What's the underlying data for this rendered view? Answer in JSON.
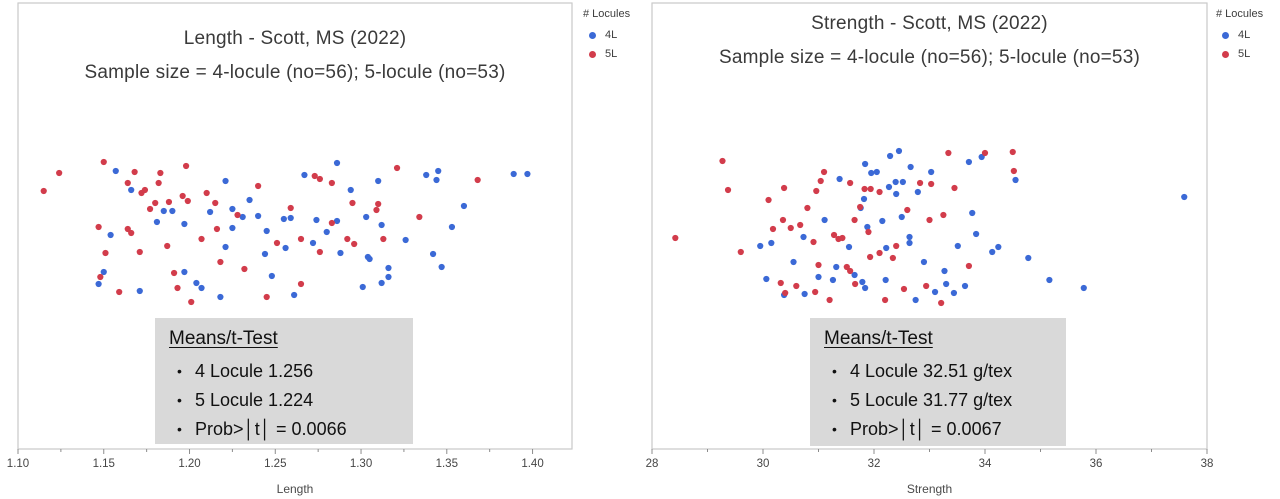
{
  "panels": [
    {
      "title": "Length - Scott, MS (2022)",
      "subtitle": "Sample size = 4-locule (no=56); 5-locule (no=53)",
      "xlabel": "Length",
      "legend": {
        "title": "# Locules",
        "items": [
          {
            "label": "4L",
            "color": "#3b69d6"
          },
          {
            "label": "5L",
            "color": "#d23c4b"
          }
        ]
      },
      "means_box": {
        "heading": "Means/t-Test",
        "bullet": "•",
        "lines": [
          "4 Locule 1.256",
          "5 Locule 1.224",
          "Prob>│t│ = 0.0066"
        ]
      }
    },
    {
      "title": "Strength - Scott, MS (2022)",
      "subtitle": "Sample size = 4-locule (no=56); 5-locule (no=53)",
      "xlabel": "Strength",
      "legend": {
        "title": "# Locules",
        "items": [
          {
            "label": "4L",
            "color": "#3b69d6"
          },
          {
            "label": "5L",
            "color": "#d23c4b"
          }
        ]
      },
      "means_box": {
        "heading": "Means/t-Test",
        "bullet": "•",
        "lines": [
          "4 Locule 32.51 g/tex",
          "5 Locule 31.77 g/tex",
          "Prob>│t│ = 0.0067"
        ]
      }
    }
  ],
  "chart_data": [
    {
      "type": "scatter",
      "title": "Length - Scott, MS (2022)",
      "subtitle": "Sample size = 4-locule (no=56); 5-locule (no=53)",
      "xlabel": "Length",
      "xlim": [
        1.1,
        1.423
      ],
      "grid": false,
      "legend_position": "top-right-outside",
      "xticks": [
        {
          "v": 1.1,
          "label": "1.10"
        },
        {
          "v": 1.15,
          "label": "1.15"
        },
        {
          "v": 1.2,
          "label": "1.20"
        },
        {
          "v": 1.25,
          "label": "1.25"
        },
        {
          "v": 1.3,
          "label": "1.30"
        },
        {
          "v": 1.35,
          "label": "1.35"
        },
        {
          "v": 1.4,
          "label": "1.40"
        }
      ],
      "xminor": [
        1.125,
        1.175,
        1.225,
        1.275,
        1.325,
        1.375
      ],
      "stats": {
        "mean_4L": 1.256,
        "mean_5L": 1.224,
        "prob_t": 0.0066,
        "n_4L": 56,
        "n_5L": 53
      },
      "series": [
        {
          "name": "4L",
          "color": "#3b69d6",
          "points": [
            [
              1.157,
              168
            ],
            [
              1.166,
              187
            ],
            [
              1.185,
              208
            ],
            [
              1.19,
              208
            ],
            [
              1.181,
              219
            ],
            [
              1.197,
              221
            ],
            [
              1.221,
              178
            ],
            [
              1.212,
              209
            ],
            [
              1.225,
              206
            ],
            [
              1.231,
              214
            ],
            [
              1.24,
              213
            ],
            [
              1.225,
              225
            ],
            [
              1.245,
              228
            ],
            [
              1.221,
              244
            ],
            [
              1.244,
              251
            ],
            [
              1.256,
              245
            ],
            [
              1.255,
              216
            ],
            [
              1.154,
              232
            ],
            [
              1.15,
              269
            ],
            [
              1.147,
              281
            ],
            [
              1.171,
              288
            ],
            [
              1.197,
              269
            ],
            [
              1.204,
              280
            ],
            [
              1.207,
              285
            ],
            [
              1.218,
              294
            ],
            [
              1.259,
              215
            ],
            [
              1.261,
              292
            ],
            [
              1.286,
              160
            ],
            [
              1.267,
              172
            ],
            [
              1.31,
              178
            ],
            [
              1.294,
              187
            ],
            [
              1.338,
              172
            ],
            [
              1.345,
              168
            ],
            [
              1.344,
              177
            ],
            [
              1.389,
              171
            ],
            [
              1.397,
              171
            ],
            [
              1.274,
              217
            ],
            [
              1.286,
              218
            ],
            [
              1.28,
              229
            ],
            [
              1.303,
              214
            ],
            [
              1.312,
              222
            ],
            [
              1.353,
              224
            ],
            [
              1.288,
              250
            ],
            [
              1.304,
              254
            ],
            [
              1.305,
              256
            ],
            [
              1.342,
              251
            ],
            [
              1.347,
              264
            ],
            [
              1.316,
              265
            ],
            [
              1.316,
              274
            ],
            [
              1.312,
              280
            ],
            [
              1.301,
              284
            ],
            [
              1.235,
              197
            ],
            [
              1.272,
              240
            ],
            [
              1.248,
              273
            ],
            [
              1.326,
              237
            ],
            [
              1.36,
              203
            ]
          ]
        },
        {
          "name": "5L",
          "color": "#d23c4b",
          "points": [
            [
              1.15,
              159
            ],
            [
              1.124,
              170
            ],
            [
              1.168,
              169
            ],
            [
              1.115,
              188
            ],
            [
              1.164,
              180
            ],
            [
              1.172,
              190
            ],
            [
              1.174,
              187
            ],
            [
              1.183,
              170
            ],
            [
              1.198,
              163
            ],
            [
              1.182,
              180
            ],
            [
              1.177,
              206
            ],
            [
              1.18,
              200
            ],
            [
              1.188,
              199
            ],
            [
              1.196,
              193
            ],
            [
              1.199,
              198
            ],
            [
              1.21,
              190
            ],
            [
              1.215,
              200
            ],
            [
              1.216,
              226
            ],
            [
              1.207,
              236
            ],
            [
              1.147,
              224
            ],
            [
              1.164,
              226
            ],
            [
              1.166,
              230
            ],
            [
              1.151,
              250
            ],
            [
              1.171,
              249
            ],
            [
              1.148,
              274
            ],
            [
              1.159,
              289
            ],
            [
              1.191,
              270
            ],
            [
              1.193,
              285
            ],
            [
              1.201,
              299
            ],
            [
              1.245,
              294
            ],
            [
              1.251,
              240
            ],
            [
              1.259,
              205
            ],
            [
              1.321,
              165
            ],
            [
              1.273,
              173
            ],
            [
              1.276,
              176
            ],
            [
              1.283,
              180
            ],
            [
              1.368,
              177
            ],
            [
              1.295,
              200
            ],
            [
              1.31,
              201
            ],
            [
              1.309,
              207
            ],
            [
              1.334,
              214
            ],
            [
              1.283,
              220
            ],
            [
              1.292,
              236
            ],
            [
              1.296,
              241
            ],
            [
              1.313,
              236
            ],
            [
              1.276,
              249
            ],
            [
              1.265,
              236
            ],
            [
              1.265,
              281
            ],
            [
              1.218,
              259
            ],
            [
              1.228,
              212
            ],
            [
              1.187,
              243
            ],
            [
              1.24,
              183
            ],
            [
              1.232,
              266
            ]
          ]
        }
      ]
    },
    {
      "type": "scatter",
      "title": "Strength - Scott, MS (2022)",
      "subtitle": "Sample size = 4-locule (no=56); 5-locule (no=53)",
      "xlabel": "Strength",
      "xlim": [
        28,
        38
      ],
      "grid": false,
      "legend_position": "top-right-outside",
      "xticks": [
        {
          "v": 28,
          "label": "28"
        },
        {
          "v": 30,
          "label": "30"
        },
        {
          "v": 32,
          "label": "32"
        },
        {
          "v": 34,
          "label": "34"
        },
        {
          "v": 36,
          "label": "36"
        },
        {
          "v": 38,
          "label": "38"
        }
      ],
      "xminor": [
        29,
        31,
        33,
        35,
        37
      ],
      "stats": {
        "mean_4L": 32.51,
        "mean_5L": 31.77,
        "prob_t": 0.0067,
        "n_4L": 56,
        "n_5L": 53
      },
      "series": [
        {
          "name": "4L",
          "color": "#3b69d6",
          "points": [
            [
              32.29,
              153
            ],
            [
              32.45,
              148
            ],
            [
              31.84,
              161
            ],
            [
              31.95,
              170
            ],
            [
              32.66,
              164
            ],
            [
              33.03,
              169
            ],
            [
              31.38,
              176
            ],
            [
              32.27,
              184
            ],
            [
              32.39,
              179
            ],
            [
              32.52,
              179
            ],
            [
              31.82,
              196
            ],
            [
              31.76,
              205
            ],
            [
              32.4,
              191
            ],
            [
              32.79,
              189
            ],
            [
              32.5,
              214
            ],
            [
              32.64,
              234
            ],
            [
              32.15,
              218
            ],
            [
              31.88,
              224
            ],
            [
              31.11,
              217
            ],
            [
              30.73,
              234
            ],
            [
              29.95,
              243
            ],
            [
              30.15,
              240
            ],
            [
              32.22,
              245
            ],
            [
              32.64,
              240
            ],
            [
              31.32,
              264
            ],
            [
              31.65,
              272
            ],
            [
              31.79,
              279
            ],
            [
              31.0,
              274
            ],
            [
              30.06,
              276
            ],
            [
              30.38,
              292
            ],
            [
              30.75,
              291
            ],
            [
              31.26,
              277
            ],
            [
              32.21,
              277
            ],
            [
              31.84,
              285
            ],
            [
              33.71,
              159
            ],
            [
              33.94,
              154
            ],
            [
              34.55,
              177
            ],
            [
              33.77,
              210
            ],
            [
              33.84,
              231
            ],
            [
              33.51,
              243
            ],
            [
              34.13,
              249
            ],
            [
              34.24,
              244
            ],
            [
              34.78,
              255
            ],
            [
              33.27,
              268
            ],
            [
              33.3,
              281
            ],
            [
              33.44,
              290
            ],
            [
              33.64,
              283
            ],
            [
              35.16,
              277
            ],
            [
              35.78,
              285
            ],
            [
              37.59,
              194
            ],
            [
              32.9,
              259
            ],
            [
              31.55,
              244
            ],
            [
              32.05,
              169
            ],
            [
              30.55,
              259
            ],
            [
              33.1,
              289
            ],
            [
              32.75,
              297
            ]
          ]
        },
        {
          "name": "5L",
          "color": "#d23c4b",
          "points": [
            [
              28.42,
              235
            ],
            [
              29.27,
              158
            ],
            [
              29.37,
              187
            ],
            [
              30.38,
              185
            ],
            [
              30.96,
              188
            ],
            [
              31.04,
              178
            ],
            [
              31.57,
              180
            ],
            [
              31.83,
              186
            ],
            [
              31.94,
              186
            ],
            [
              32.1,
              189
            ],
            [
              31.75,
              204
            ],
            [
              30.36,
              217
            ],
            [
              30.5,
              225
            ],
            [
              30.67,
              222
            ],
            [
              30.18,
              226
            ],
            [
              30.91,
              239
            ],
            [
              31.28,
              232
            ],
            [
              31.36,
              236
            ],
            [
              31.43,
              235
            ],
            [
              31.65,
              217
            ],
            [
              33.0,
              217
            ],
            [
              31.93,
              254
            ],
            [
              32.1,
              250
            ],
            [
              32.34,
              255
            ],
            [
              31.0,
              262
            ],
            [
              31.51,
              264
            ],
            [
              31.57,
              268
            ],
            [
              30.32,
              280
            ],
            [
              30.4,
              290
            ],
            [
              30.94,
              289
            ],
            [
              31.66,
              281
            ],
            [
              32.54,
              286
            ],
            [
              32.94,
              283
            ],
            [
              32.83,
              180
            ],
            [
              33.03,
              181
            ],
            [
              33.34,
              150
            ],
            [
              34.0,
              150
            ],
            [
              34.5,
              149
            ],
            [
              34.52,
              168
            ],
            [
              33.45,
              185
            ],
            [
              33.25,
              212
            ],
            [
              33.71,
              263
            ],
            [
              33.21,
              300
            ],
            [
              29.6,
              249
            ],
            [
              30.1,
              197
            ],
            [
              30.8,
              205
            ],
            [
              31.2,
              297
            ],
            [
              31.9,
              229
            ],
            [
              32.2,
              297
            ],
            [
              32.6,
              207
            ],
            [
              31.1,
              169
            ],
            [
              32.4,
              243
            ],
            [
              30.6,
              283
            ]
          ]
        }
      ]
    }
  ],
  "style": {
    "frame_color": "#c9c9c9",
    "tick_color": "#8c8c8c",
    "tick_label_color": "#454545",
    "point_radius": 3.1
  }
}
